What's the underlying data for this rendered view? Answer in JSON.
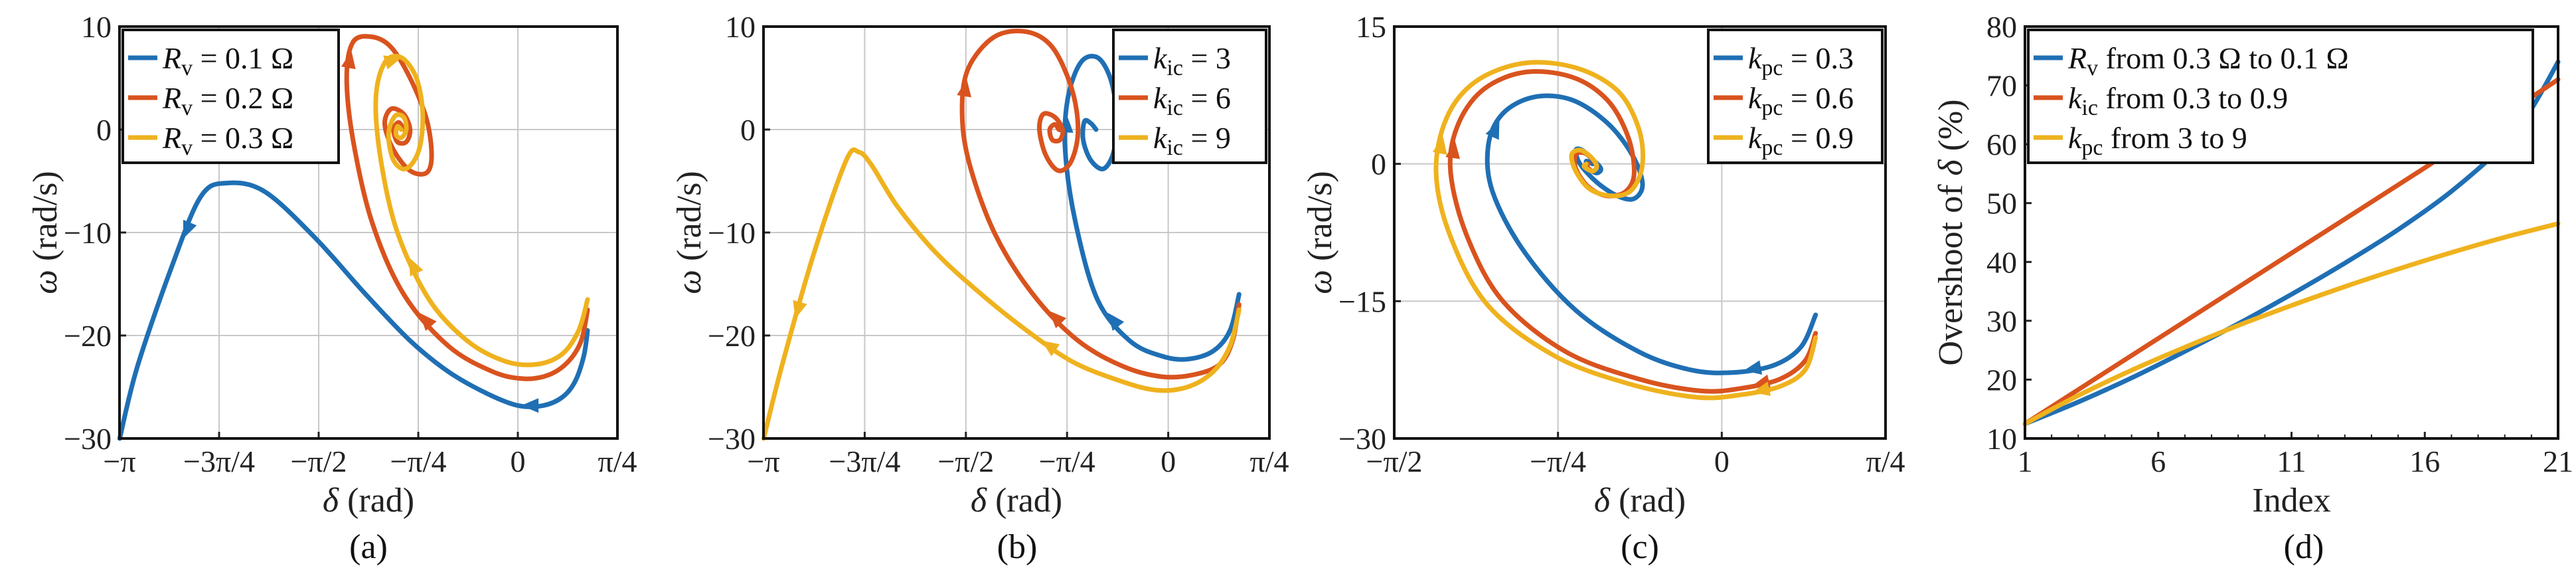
{
  "colors": {
    "blue": "#1f6fb4",
    "red": "#d9531e",
    "yellow": "#efb21e"
  },
  "chart_data": [
    {
      "type": "line",
      "panel_label": "(a)",
      "xlabel": "δ (rad)",
      "ylabel": "ω (rad/s)",
      "xlim": [
        -3.1416,
        0.7854
      ],
      "ylim": [
        -30,
        10
      ],
      "x_ticks": [
        -3.1416,
        -2.3562,
        -1.5708,
        -0.7854,
        0,
        0.7854
      ],
      "x_tick_labels": [
        "−π",
        "−3π/4",
        "−π/2",
        "−π/4",
        "0",
        "π/4"
      ],
      "y_ticks": [
        -30,
        -20,
        -10,
        0,
        10
      ],
      "y_tick_labels": [
        "−30",
        "−20",
        "−10",
        "0",
        "10"
      ],
      "grid": true,
      "legend": "top-left",
      "series": [
        {
          "name": "Rv = 0.1 Ω",
          "label": "R_v = 0.1 Ω",
          "color": "blue",
          "x": [
            0.55,
            0.52,
            0.45,
            0.35,
            0.2,
            0.0,
            -0.25,
            -0.55,
            -0.85,
            -1.2,
            -1.6,
            -2.0,
            -2.3,
            -2.5,
            -2.72,
            -3.0,
            -3.14
          ],
          "y": [
            -19.5,
            -22,
            -24.5,
            -26,
            -26.8,
            -26.8,
            -25.6,
            -23.5,
            -20.5,
            -16,
            -10.5,
            -6,
            -5.2,
            -6.5,
            -13,
            -23,
            -30
          ],
          "arrows": [
            4,
            13
          ]
        },
        {
          "name": "Rv = 0.2 Ω",
          "label": "R_v = 0.2 Ω",
          "color": "red",
          "x": [
            0.55,
            0.5,
            0.4,
            0.25,
            0.05,
            -0.2,
            -0.55,
            -0.9,
            -1.15,
            -1.3,
            -1.35,
            -1.3,
            -1.15,
            -1.0,
            -0.85,
            -0.72,
            -0.68,
            -0.72,
            -0.85,
            -0.98,
            -1.05,
            -1.0,
            -0.9,
            -0.85,
            -0.88,
            -0.95,
            -0.98,
            -0.94,
            -0.9
          ],
          "y": [
            -17.5,
            -20.5,
            -22.5,
            -23.8,
            -24.2,
            -23.5,
            -21,
            -16,
            -9,
            -1,
            5,
            8.5,
            9,
            8,
            5,
            1,
            -2.5,
            -4.2,
            -4,
            -2,
            0.5,
            2,
            1.5,
            0,
            -1.2,
            -1.2,
            0,
            0.7,
            0
          ],
          "arrows": [
            6,
            10
          ]
        },
        {
          "name": "Rv = 0.3 Ω",
          "label": "R_v = 0.3 Ω",
          "color": "yellow",
          "x": [
            0.55,
            0.48,
            0.35,
            0.15,
            -0.1,
            -0.4,
            -0.7,
            -0.95,
            -1.08,
            -1.12,
            -1.05,
            -0.92,
            -0.8,
            -0.75,
            -0.78,
            -0.88,
            -0.98,
            -1.02,
            -0.97,
            -0.9,
            -0.88,
            -0.92,
            -0.96,
            -0.95,
            -0.92
          ],
          "y": [
            -16.5,
            -19.5,
            -21.8,
            -22.8,
            -22.5,
            -20.5,
            -16.5,
            -10,
            -3,
            3,
            6.5,
            7,
            5,
            1.5,
            -2,
            -3.8,
            -3,
            -0.5,
            1.3,
            1.2,
            0,
            -0.8,
            -0.5,
            0.3,
            0
          ],
          "arrows": [
            6,
            10
          ]
        }
      ]
    },
    {
      "type": "line",
      "panel_label": "(b)",
      "xlabel": "δ (rad)",
      "ylabel": "ω (rad/s)",
      "xlim": [
        -3.1416,
        0.7854
      ],
      "ylim": [
        -30,
        10
      ],
      "x_ticks": [
        -3.1416,
        -2.3562,
        -1.5708,
        -0.7854,
        0,
        0.7854
      ],
      "x_tick_labels": [
        "−π",
        "−3π/4",
        "−π/2",
        "−π/4",
        "0",
        "π/4"
      ],
      "y_ticks": [
        -30,
        -20,
        -10,
        0,
        10
      ],
      "y_tick_labels": [
        "−30",
        "−20",
        "−10",
        "0",
        "10"
      ],
      "grid": true,
      "legend": "top-right",
      "series": [
        {
          "name": "kic = 3",
          "label": "k_ic = 3",
          "color": "blue",
          "x": [
            0.55,
            0.48,
            0.35,
            0.15,
            -0.05,
            -0.3,
            -0.55,
            -0.72,
            -0.8,
            -0.78,
            -0.68,
            -0.55,
            -0.45,
            -0.4,
            -0.42,
            -0.5,
            -0.6,
            -0.66,
            -0.65,
            -0.6,
            -0.56
          ],
          "y": [
            -16,
            -19.5,
            -21.5,
            -22.3,
            -22,
            -20.5,
            -16.5,
            -9,
            -2,
            3,
            6.5,
            7,
            5,
            1.5,
            -2,
            -3.8,
            -3,
            -1,
            0.8,
            0.6,
            0
          ],
          "arrows": [
            5,
            8
          ]
        },
        {
          "name": "kic = 6",
          "label": "k_ic = 6",
          "color": "red",
          "x": [
            0.55,
            0.5,
            0.4,
            0.2,
            -0.05,
            -0.35,
            -0.7,
            -1.05,
            -1.35,
            -1.55,
            -1.6,
            -1.55,
            -1.35,
            -1.1,
            -0.9,
            -0.75,
            -0.7,
            -0.75,
            -0.85,
            -0.95,
            -1.0,
            -0.97,
            -0.88,
            -0.82,
            -0.84,
            -0.9,
            -0.92,
            -0.88,
            -0.85
          ],
          "y": [
            -17,
            -20.5,
            -22.8,
            -23.8,
            -24,
            -23,
            -20.5,
            -16,
            -10,
            -3,
            2,
            6,
            9,
            9.5,
            8,
            4,
            0,
            -3,
            -4,
            -2.5,
            0,
            1.5,
            1.2,
            0,
            -1,
            -1,
            0,
            0.5,
            0
          ],
          "arrows": [
            6,
            10
          ]
        },
        {
          "name": "kic = 9",
          "label": "k_ic = 9",
          "color": "yellow",
          "x": [
            0.55,
            0.48,
            0.35,
            0.15,
            -0.1,
            -0.4,
            -0.75,
            -1.1,
            -1.45,
            -1.8,
            -2.1,
            -2.3,
            -2.4,
            -2.5,
            -2.75,
            -3.0,
            -3.14
          ],
          "y": [
            -17.5,
            -21,
            -23.5,
            -25,
            -25.3,
            -24.3,
            -22.5,
            -19.5,
            -16,
            -12,
            -7.5,
            -3.5,
            -2.2,
            -3,
            -12,
            -23,
            -30
          ],
          "arrows": [
            6,
            14
          ]
        }
      ]
    },
    {
      "type": "line",
      "panel_label": "(c)",
      "xlabel": "δ (rad)",
      "ylabel": "ω (rad/s)",
      "xlim": [
        -1.5708,
        0.7854
      ],
      "ylim": [
        -30,
        15
      ],
      "x_ticks": [
        -1.5708,
        -0.7854,
        0,
        0.7854
      ],
      "x_tick_labels": [
        "−π/2",
        "−π/4",
        "0",
        "π/4"
      ],
      "y_ticks": [
        -30,
        -15,
        0,
        15
      ],
      "y_tick_labels": [
        "−30",
        "−15",
        "0",
        "15"
      ],
      "grid": true,
      "legend": "top-right",
      "series": [
        {
          "name": "kpc = 0.3",
          "label": "k_pc = 0.3",
          "color": "blue",
          "x": [
            0.45,
            0.38,
            0.25,
            0.05,
            -0.15,
            -0.4,
            -0.7,
            -0.95,
            -1.1,
            -1.12,
            -1.05,
            -0.9,
            -0.72,
            -0.55,
            -0.43,
            -0.38,
            -0.42,
            -0.5,
            -0.6,
            -0.68,
            -0.7,
            -0.67,
            -0.62,
            -0.58,
            -0.6,
            -0.64,
            -0.65,
            -0.62
          ],
          "y": [
            -16.5,
            -20,
            -22,
            -22.8,
            -22.5,
            -20.5,
            -16,
            -9.5,
            -3,
            2,
            5.5,
            7.3,
            7,
            4.5,
            1,
            -2.2,
            -3.8,
            -3.5,
            -2,
            0,
            1.5,
            1.5,
            0.5,
            -0.5,
            -1,
            -0.5,
            0.3,
            0
          ],
          "arrows": [
            2,
            9
          ]
        },
        {
          "name": "kpc = 0.6",
          "label": "k_pc = 0.6",
          "color": "red",
          "x": [
            0.45,
            0.4,
            0.28,
            0.1,
            -0.1,
            -0.4,
            -0.75,
            -1.05,
            -1.22,
            -1.3,
            -1.27,
            -1.15,
            -0.95,
            -0.72,
            -0.55,
            -0.45,
            -0.42,
            -0.46,
            -0.55,
            -0.64,
            -0.7,
            -0.7,
            -0.66,
            -0.62,
            -0.6,
            -0.62,
            -0.65,
            -0.64
          ],
          "y": [
            -18.5,
            -21.5,
            -23.5,
            -24.5,
            -24.8,
            -23.5,
            -20.5,
            -15,
            -8,
            -1,
            4,
            8,
            10,
            9.5,
            7,
            3,
            -1,
            -3,
            -3.5,
            -2.5,
            -0.5,
            1,
            1.2,
            0.5,
            -0.3,
            -0.8,
            -0.2,
            0
          ],
          "arrows": [
            2,
            9
          ]
        },
        {
          "name": "kpc = 0.9",
          "label": "k_pc = 0.9",
          "color": "yellow",
          "x": [
            0.45,
            0.4,
            0.28,
            0.1,
            -0.12,
            -0.45,
            -0.8,
            -1.12,
            -1.3,
            -1.37,
            -1.32,
            -1.18,
            -0.95,
            -0.7,
            -0.5,
            -0.4,
            -0.38,
            -0.43,
            -0.52,
            -0.63,
            -0.7,
            -0.72,
            -0.68,
            -0.63,
            -0.6,
            -0.62,
            -0.66,
            -0.65
          ],
          "y": [
            -19,
            -22.5,
            -24.3,
            -25.2,
            -25.5,
            -24,
            -21,
            -15.5,
            -8,
            -1,
            5,
            9,
            11,
            10.5,
            8,
            4,
            0,
            -2.8,
            -3.5,
            -2.8,
            -0.8,
            1,
            1.5,
            0.8,
            -0.2,
            -0.8,
            -0.3,
            0
          ],
          "arrows": [
            2,
            9
          ]
        }
      ]
    },
    {
      "type": "line",
      "panel_label": "(d)",
      "xlabel": "Index",
      "ylabel": "Overshoot of δ (%)",
      "xlim": [
        1,
        21
      ],
      "ylim": [
        10,
        80
      ],
      "x_ticks": [
        1,
        6,
        11,
        16,
        21
      ],
      "x_tick_labels": [
        "1",
        "6",
        "11",
        "16",
        "21"
      ],
      "y_ticks": [
        10,
        20,
        30,
        40,
        50,
        60,
        70,
        80
      ],
      "y_tick_labels": [
        "10",
        "20",
        "30",
        "40",
        "50",
        "60",
        "70",
        "80"
      ],
      "grid": false,
      "legend": "top-left",
      "series": [
        {
          "name": "Rv from 0.3 Ω to 0.1 Ω",
          "label": "R_v from 0.3 Ω to 0.1 Ω",
          "color": "blue",
          "x": [
            1,
            3,
            5,
            7,
            9,
            11,
            13,
            15,
            17,
            19,
            20,
            21
          ],
          "y": [
            12.5,
            16.2,
            20.3,
            24.8,
            29.5,
            34.5,
            39.8,
            45.5,
            52,
            60,
            66,
            74
          ]
        },
        {
          "name": "kic from 0.3 to 0.9",
          "label": "k_ic from 0.3 to  0.9",
          "color": "red",
          "x": [
            1,
            6,
            11,
            16,
            21
          ],
          "y": [
            12.5,
            27,
            41.5,
            56,
            71
          ]
        },
        {
          "name": "kpc from 3 to 9",
          "label": "k_pc from 3 to  9",
          "color": "yellow",
          "x": [
            1,
            3,
            5,
            7,
            9,
            11,
            13,
            15,
            17,
            19,
            21
          ],
          "y": [
            12.5,
            17.3,
            21.6,
            25.5,
            29.2,
            32.6,
            35.8,
            38.8,
            41.6,
            44.2,
            46.5
          ]
        }
      ]
    }
  ]
}
